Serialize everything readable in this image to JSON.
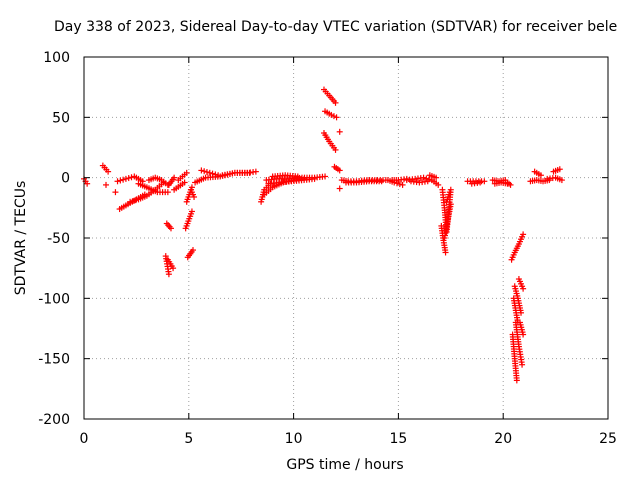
{
  "chart_data": {
    "type": "scatter",
    "title": "Day 338 of 2023, Sidereal Day-to-day VTEC variation (SDTVAR) for receiver bele",
    "xlabel": "GPS time / hours",
    "ylabel": "SDTVAR / TECUs",
    "xlim": [
      0,
      25
    ],
    "ylim": [
      -200,
      100
    ],
    "xticks": [
      "0",
      "5",
      "10",
      "15",
      "20",
      "25"
    ],
    "yticks": [
      "100",
      "50",
      "0",
      "-50",
      "-100",
      "-150",
      "-200"
    ],
    "xtick_values": [
      0,
      5,
      10,
      15,
      20,
      25
    ],
    "ytick_values": [
      100,
      50,
      0,
      -50,
      -100,
      -150,
      -200
    ],
    "grid": true,
    "marker": "+",
    "marker_color": "#ff0000",
    "grid_color": "#a0a0a0",
    "segments": [
      {
        "x": [
          0.0,
          0.15
        ],
        "y": [
          -1,
          -5
        ]
      },
      {
        "x": [
          0.9,
          1.15
        ],
        "y": [
          10,
          5
        ]
      },
      {
        "x": [
          1.05
        ],
        "y": [
          -6
        ]
      },
      {
        "x": [
          1.5
        ],
        "y": [
          -12
        ]
      },
      {
        "x": [
          1.6,
          2.0,
          2.4,
          2.8
        ],
        "y": [
          -3,
          -1,
          1,
          -3
        ]
      },
      {
        "x": [
          1.7,
          2.1,
          2.5,
          2.9
        ],
        "y": [
          -26,
          -22,
          -18,
          -14
        ]
      },
      {
        "x": [
          2.2,
          2.6,
          3.0,
          3.4,
          3.8
        ],
        "y": [
          -20,
          -18,
          -15,
          -10,
          -4
        ]
      },
      {
        "x": [
          2.6,
          3.0,
          3.5,
          4.0
        ],
        "y": [
          -5,
          -8,
          -12,
          -12
        ]
      },
      {
        "x": [
          3.1,
          3.4,
          3.7,
          4.0
        ],
        "y": [
          -2,
          0,
          -2,
          -6
        ]
      },
      {
        "x": [
          3.9,
          4.05
        ],
        "y": [
          -65,
          -80
        ]
      },
      {
        "x": [
          4.0,
          4.25
        ],
        "y": [
          -68,
          -75
        ]
      },
      {
        "x": [
          3.95,
          4.15
        ],
        "y": [
          -38,
          -42
        ]
      },
      {
        "x": [
          4.05,
          4.3
        ],
        "y": [
          -6,
          0
        ]
      },
      {
        "x": [
          4.3,
          4.8
        ],
        "y": [
          -10,
          -4
        ]
      },
      {
        "x": [
          4.5,
          4.9
        ],
        "y": [
          -2,
          4
        ]
      },
      {
        "x": [
          4.9,
          5.15
        ],
        "y": [
          -20,
          -8
        ]
      },
      {
        "x": [
          4.85,
          5.15
        ],
        "y": [
          -42,
          -28
        ]
      },
      {
        "x": [
          4.95,
          5.2
        ],
        "y": [
          -66,
          -60
        ]
      },
      {
        "x": [
          5.1,
          5.25
        ],
        "y": [
          -10,
          -16
        ]
      },
      {
        "x": [
          5.3,
          5.8,
          6.5,
          7.2,
          7.9
        ],
        "y": [
          -4,
          0,
          1,
          4,
          4
        ]
      },
      {
        "x": [
          5.6,
          6.0,
          6.4
        ],
        "y": [
          6,
          4,
          2
        ]
      },
      {
        "x": [
          6.6,
          7.2,
          7.8,
          8.2
        ],
        "y": [
          2,
          4,
          4,
          5
        ]
      },
      {
        "x": [
          8.45,
          8.6,
          8.9
        ],
        "y": [
          -20,
          -10,
          -5
        ]
      },
      {
        "x": [
          8.6,
          9.0,
          9.5,
          10.0,
          10.5
        ],
        "y": [
          -14,
          -8,
          -4,
          -2,
          -1
        ]
      },
      {
        "x": [
          8.7,
          9.2,
          9.8,
          10.4,
          11.0,
          11.5
        ],
        "y": [
          -2,
          -1,
          -1,
          0,
          0,
          1
        ]
      },
      {
        "x": [
          8.8,
          9.3,
          9.9,
          10.5,
          11.0
        ],
        "y": [
          -5,
          -4,
          -3,
          -2,
          -1
        ]
      },
      {
        "x": [
          9.0,
          9.6,
          10.2
        ],
        "y": [
          1,
          2,
          1
        ]
      },
      {
        "x": [
          11.45,
          11.7,
          12.0
        ],
        "y": [
          73,
          68,
          62
        ]
      },
      {
        "x": [
          11.5,
          11.8,
          12.05
        ],
        "y": [
          55,
          52,
          50
        ]
      },
      {
        "x": [
          11.45,
          11.7,
          12.0
        ],
        "y": [
          37,
          30,
          23
        ]
      },
      {
        "x": [
          12.2
        ],
        "y": [
          38
        ]
      },
      {
        "x": [
          11.95,
          12.2
        ],
        "y": [
          9,
          6
        ]
      },
      {
        "x": [
          12.2
        ],
        "y": [
          -9
        ]
      },
      {
        "x": [
          12.3,
          12.6,
          13.0,
          13.5,
          14.0,
          14.4
        ],
        "y": [
          -2,
          -3,
          -3,
          -2,
          -2,
          -2
        ]
      },
      {
        "x": [
          12.5,
          13.0,
          13.6,
          14.2
        ],
        "y": [
          -4,
          -4,
          -3,
          -3
        ]
      },
      {
        "x": [
          14.5,
          14.8,
          15.2
        ],
        "y": [
          -2,
          -4,
          -6
        ]
      },
      {
        "x": [
          14.7,
          15.0,
          15.4
        ],
        "y": [
          -2,
          -2,
          -1
        ]
      },
      {
        "x": [
          15.4,
          15.8,
          16.2,
          16.6
        ],
        "y": [
          -2,
          -1,
          0,
          -2
        ]
      },
      {
        "x": [
          15.6,
          16.0,
          16.4
        ],
        "y": [
          -3,
          -4,
          -3
        ]
      },
      {
        "x": [
          16.5,
          16.8
        ],
        "y": [
          2,
          0
        ]
      },
      {
        "x": [
          16.6,
          16.9
        ],
        "y": [
          -2,
          -6
        ]
      },
      {
        "x": [
          17.1,
          17.2,
          17.3,
          17.5
        ],
        "y": [
          -10,
          -25,
          -45,
          -10
        ]
      },
      {
        "x": [
          17.05,
          17.15,
          17.25
        ],
        "y": [
          -40,
          -52,
          -62
        ]
      },
      {
        "x": [
          17.2,
          17.35,
          17.5
        ],
        "y": [
          -50,
          -36,
          -22
        ]
      },
      {
        "x": [
          17.3,
          17.45
        ],
        "y": [
          -20,
          -12
        ]
      },
      {
        "x": [
          18.3,
          18.7,
          19.1
        ],
        "y": [
          -3,
          -3,
          -3
        ]
      },
      {
        "x": [
          18.5,
          18.9
        ],
        "y": [
          -5,
          -4
        ]
      },
      {
        "x": [
          19.5,
          19.8,
          20.1
        ],
        "y": [
          -2,
          -3,
          -2
        ]
      },
      {
        "x": [
          19.6,
          19.9,
          20.2
        ],
        "y": [
          -5,
          -4,
          -5
        ]
      },
      {
        "x": [
          20.2,
          20.35
        ],
        "y": [
          -4,
          -6
        ]
      },
      {
        "x": [
          20.4,
          20.55,
          20.75,
          20.95
        ],
        "y": [
          -68,
          -62,
          -55,
          -47
        ]
      },
      {
        "x": [
          20.5,
          20.6,
          20.7
        ],
        "y": [
          -100,
          -110,
          -120
        ]
      },
      {
        "x": [
          20.45,
          20.55,
          20.65
        ],
        "y": [
          -130,
          -150,
          -168
        ]
      },
      {
        "x": [
          20.55,
          20.7,
          20.85
        ],
        "y": [
          -90,
          -100,
          -112
        ]
      },
      {
        "x": [
          20.6,
          20.75,
          20.9
        ],
        "y": [
          -120,
          -140,
          -155
        ]
      },
      {
        "x": [
          20.75,
          20.85,
          20.95
        ],
        "y": [
          -84,
          -88,
          -92
        ]
      },
      {
        "x": [
          20.8,
          20.95
        ],
        "y": [
          -120,
          -130
        ]
      },
      {
        "x": [
          21.3,
          21.6,
          21.9,
          22.2
        ],
        "y": [
          -3,
          -2,
          -3,
          -2
        ]
      },
      {
        "x": [
          21.5,
          21.8
        ],
        "y": [
          5,
          2
        ]
      },
      {
        "x": [
          22.1,
          22.5,
          22.8
        ],
        "y": [
          -1,
          0,
          -2
        ]
      },
      {
        "x": [
          22.4,
          22.7
        ],
        "y": [
          5,
          7
        ]
      }
    ]
  }
}
